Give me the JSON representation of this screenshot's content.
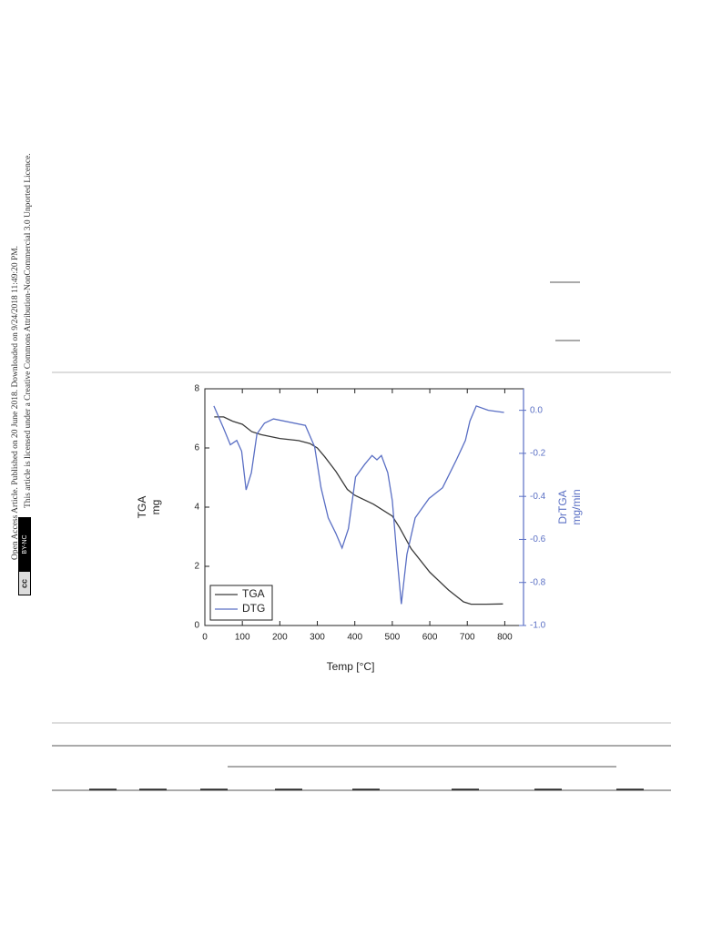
{
  "sidebar": {
    "line1": "Open Access Article. Published on 20 June 2018. Downloaded on 9/24/2018 11:49:20 PM.",
    "line2": "This article is licensed under a Creative Commons Attribution-NonCommercial 3.0 Unported Licence.",
    "badge_cc": "cc",
    "badge_license": "BY-NC"
  },
  "chart_data": {
    "type": "line",
    "x_label": "Temp [°C]",
    "y_label": [
      "TGA",
      "mg"
    ],
    "y2_label": [
      "DrTGA",
      "mg/min"
    ],
    "xlim": [
      0,
      850
    ],
    "xticks": [
      0,
      100,
      200,
      300,
      400,
      500,
      600,
      700,
      800
    ],
    "ylim": [
      0,
      8
    ],
    "yticks": [
      0,
      2,
      4,
      6,
      8
    ],
    "y2lim": [
      -1,
      0.1
    ],
    "y2ticks": [
      {
        "value": -1,
        "label": "-1.0"
      },
      -0.8,
      -0.6,
      -0.4,
      -0.2,
      {
        "value": 0,
        "label": "0.0"
      }
    ],
    "legend": "lower left",
    "series": [
      {
        "name": "TGA",
        "color": "#3a3a3a",
        "x": [
          25,
          50,
          75,
          100,
          125,
          150,
          200,
          250,
          280,
          300,
          320,
          350,
          380,
          400,
          450,
          500,
          520,
          550,
          600,
          650,
          690,
          710,
          750,
          795
        ],
        "values": [
          7.05,
          7.05,
          6.9,
          6.8,
          6.55,
          6.45,
          6.32,
          6.25,
          6.15,
          6.0,
          5.7,
          5.2,
          4.6,
          4.4,
          4.1,
          3.7,
          3.3,
          2.6,
          1.8,
          1.2,
          0.8,
          0.72,
          0.72,
          0.73
        ]
      },
      {
        "name": "DTG",
        "color": "#5a6fc4",
        "axis": "y2",
        "x": [
          24,
          49,
          68,
          85,
          98,
          110,
          124,
          139,
          159,
          183,
          268,
          293,
          310,
          329,
          349,
          366,
          383,
          402,
          427,
          446,
          459,
          471,
          488,
          500,
          512,
          524,
          539,
          561,
          598,
          634,
          671,
          695,
          707,
          724,
          756,
          798
        ],
        "values": [
          0.02,
          -0.08,
          -0.16,
          -0.14,
          -0.19,
          -0.37,
          -0.29,
          -0.11,
          -0.06,
          -0.04,
          -0.07,
          -0.17,
          -0.36,
          -0.5,
          -0.57,
          -0.64,
          -0.55,
          -0.31,
          -0.25,
          -0.21,
          -0.23,
          -0.21,
          -0.29,
          -0.42,
          -0.67,
          -0.9,
          -0.67,
          -0.5,
          -0.41,
          -0.36,
          -0.23,
          -0.14,
          -0.05,
          0.02,
          0,
          -0.01
        ]
      }
    ]
  }
}
